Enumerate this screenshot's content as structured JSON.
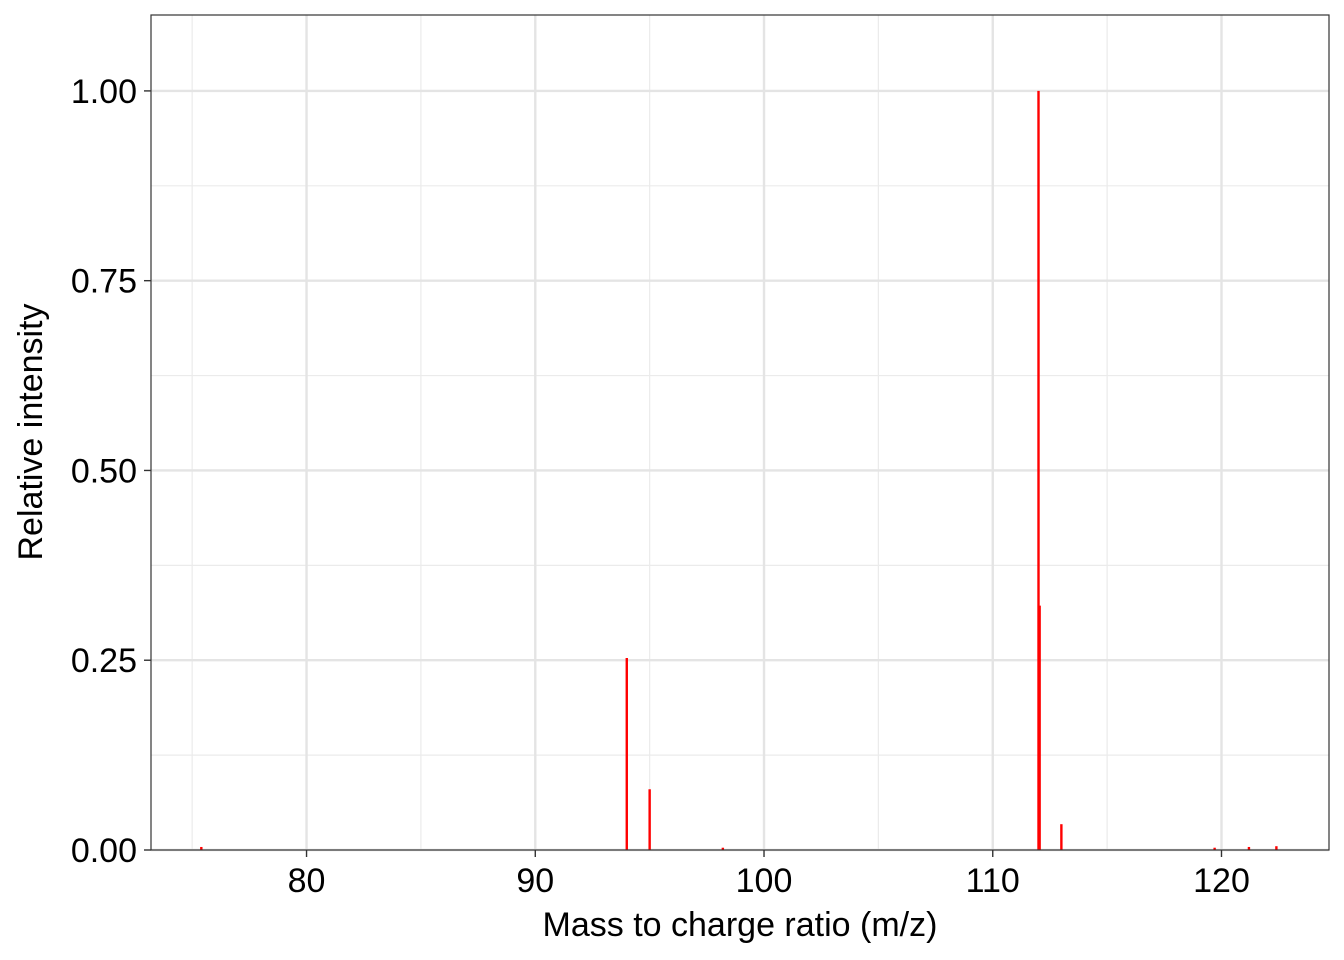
{
  "chart_data": {
    "type": "bar",
    "subtype": "mass-spectrum-sticks",
    "title": "",
    "xlabel": "Mass to charge ratio (m/z)",
    "ylabel": "Relative intensity",
    "xlim": [
      73.2,
      124.7
    ],
    "ylim": [
      0,
      1.1
    ],
    "x_ticks": [
      80,
      90,
      100,
      110,
      120
    ],
    "x_tick_labels": [
      "80",
      "90",
      "100",
      "110",
      "120"
    ],
    "y_ticks": [
      0,
      0.25,
      0.5,
      0.75,
      1.0
    ],
    "y_tick_labels": [
      "0.00",
      "0.25",
      "0.50",
      "0.75",
      "1.00"
    ],
    "grid": true,
    "legend": "none",
    "series": [
      {
        "color": "#ff0000",
        "x": [
          75.4,
          94.0,
          95.0,
          98.2,
          112.0,
          112.05,
          113.0,
          119.7,
          121.2,
          122.4
        ],
        "values": [
          0.004,
          0.253,
          0.08,
          0.003,
          1.0,
          0.322,
          0.034,
          0.003,
          0.004,
          0.005
        ]
      }
    ]
  }
}
